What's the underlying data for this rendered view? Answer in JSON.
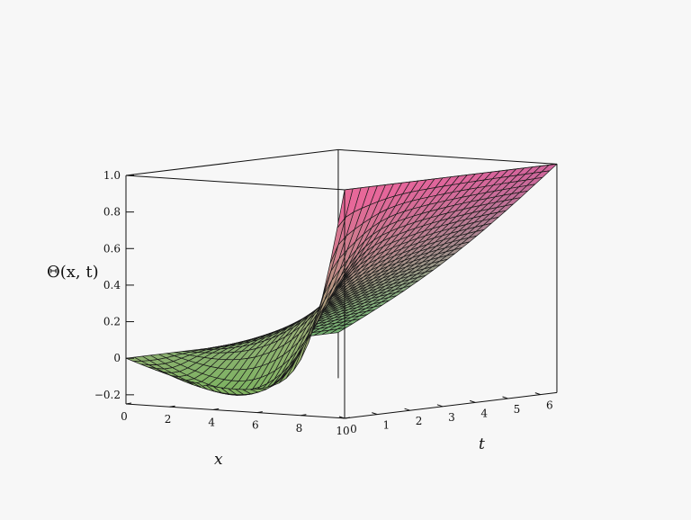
{
  "chart_data": {
    "type": "surface3d",
    "title": "",
    "zlabel": "Θ(x, t)",
    "xlabel": "x",
    "ylabel": "t",
    "x_range": [
      0,
      10
    ],
    "t_range": [
      0,
      6.5
    ],
    "z_range": [
      -0.25,
      1.0
    ],
    "x_ticks": [
      "0",
      "2",
      "4",
      "6",
      "8",
      "10"
    ],
    "t_ticks": [
      "0",
      "1",
      "2",
      "3",
      "4",
      "5",
      "6"
    ],
    "z_ticks": [
      "−0.2",
      "0",
      "0.2",
      "0.4",
      "0.6",
      "0.8",
      "1.0"
    ],
    "z_tick_values": [
      -0.2,
      0,
      0.2,
      0.4,
      0.6,
      0.8,
      1.0
    ],
    "boundary_condition_x10": 1.0,
    "boundary_condition_x0": 0.0,
    "initial_condition_t0": 0.0,
    "minimum_value": -0.2,
    "box": true,
    "grid_style": "wireframe-shaded"
  }
}
